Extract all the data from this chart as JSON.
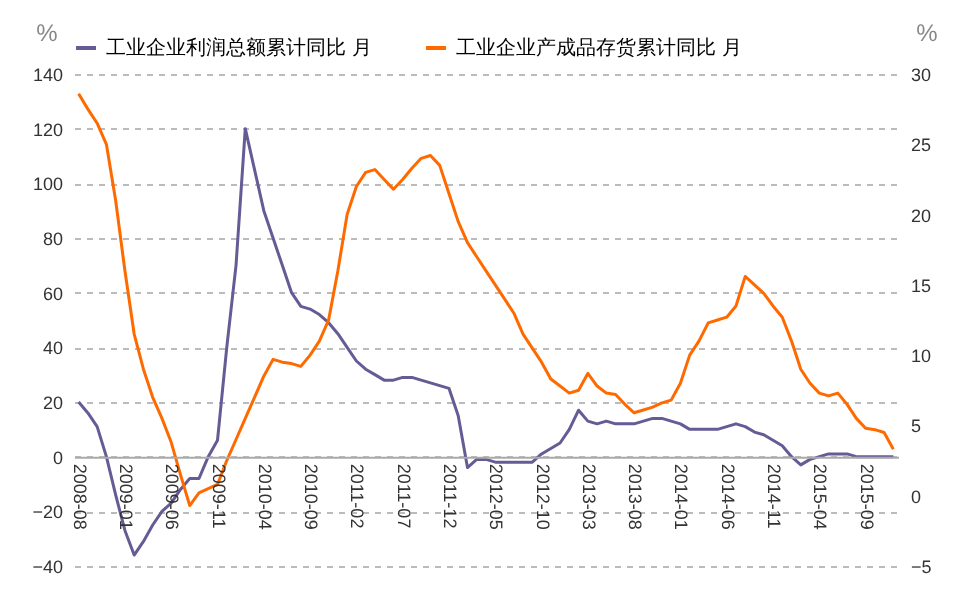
{
  "chart_data": {
    "type": "line",
    "categories": [
      "2008-08",
      null,
      null,
      null,
      null,
      "2009-01",
      null,
      null,
      null,
      null,
      "2009-06",
      null,
      null,
      null,
      null,
      "2009-11",
      null,
      null,
      null,
      null,
      "2010-04",
      null,
      null,
      null,
      null,
      "2010-09",
      null,
      null,
      null,
      null,
      "2011-02",
      null,
      null,
      null,
      null,
      "2011-07",
      null,
      null,
      null,
      null,
      "2011-12",
      null,
      null,
      null,
      null,
      "2012-05",
      null,
      null,
      null,
      null,
      "2012-10",
      null,
      null,
      null,
      null,
      "2013-03",
      null,
      null,
      null,
      null,
      "2013-08",
      null,
      null,
      null,
      null,
      "2014-01",
      null,
      null,
      null,
      null,
      "2014-06",
      null,
      null,
      null,
      null,
      "2014-11",
      null,
      null,
      null,
      null,
      "2015-04",
      null,
      null,
      null,
      null,
      "2015-09",
      null,
      null,
      null
    ],
    "series": [
      {
        "name": "工业企业利润总额累计同比  月",
        "color": "#655b95",
        "values": [
          20,
          16,
          11,
          0,
          -14,
          -27,
          -36,
          -31,
          -25,
          -20,
          -17,
          -12,
          -8,
          -8,
          0,
          6,
          40,
          70,
          120,
          105,
          90,
          80,
          70,
          60,
          55,
          54,
          52,
          49,
          45,
          40,
          35,
          32,
          30,
          28,
          28,
          29,
          29,
          28,
          27,
          26,
          25,
          15,
          -4,
          -1,
          -1,
          -2,
          -2,
          -2,
          -2,
          -2,
          1,
          3,
          5,
          10,
          17,
          13,
          12,
          13,
          12,
          12,
          12,
          13,
          14,
          14,
          13,
          12,
          10,
          10,
          10,
          10,
          11,
          12,
          11,
          9,
          8,
          6,
          4,
          0,
          -3,
          -1,
          0,
          1,
          1,
          1,
          0,
          0,
          0,
          0,
          0
        ]
      },
      {
        "name": "工业企业产成品存货累计同比  月",
        "color": "#ff6a00",
        "axis": "y2",
        "values": [
          28.6,
          27.5,
          26.5,
          25,
          21,
          16,
          11.5,
          9,
          7,
          5.5,
          3.8,
          1.5,
          -0.7,
          0.2,
          0.5,
          0.8,
          2.5,
          4,
          5.5,
          7,
          8.5,
          9.7,
          9.5,
          9.4,
          9.2,
          10,
          11,
          12.5,
          16,
          20,
          22,
          23,
          23.2,
          22.5,
          21.8,
          22.5,
          23.3,
          24,
          24.2,
          23.5,
          21.5,
          19.5,
          18,
          17,
          16,
          15,
          14,
          13,
          11.5,
          10.5,
          9.5,
          8.3,
          7.8,
          7.3,
          7.5,
          8.7,
          7.8,
          7.3,
          7.2,
          6.5,
          5.9,
          6.1,
          6.3,
          6.6,
          6.8,
          8,
          10,
          11,
          12.3,
          12.5,
          12.7,
          13.5,
          15.6,
          15,
          14.4,
          13.5,
          12.7,
          11,
          9,
          8,
          7.3,
          7.1,
          7.3,
          6.5,
          5.5,
          4.8,
          4.7,
          4.5,
          3.3
        ]
      }
    ],
    "ylabel": "%",
    "y2label": "%",
    "ylim": [
      -40,
      140
    ],
    "yticks": [
      -40,
      -20,
      0,
      20,
      40,
      60,
      80,
      100,
      120,
      140
    ],
    "y2lim": [
      -5,
      30
    ],
    "y2ticks": [
      -5,
      0,
      5,
      10,
      15,
      20,
      25,
      30
    ],
    "grid": "y",
    "legend": "top",
    "line_style": "solid",
    "marker": "none"
  }
}
